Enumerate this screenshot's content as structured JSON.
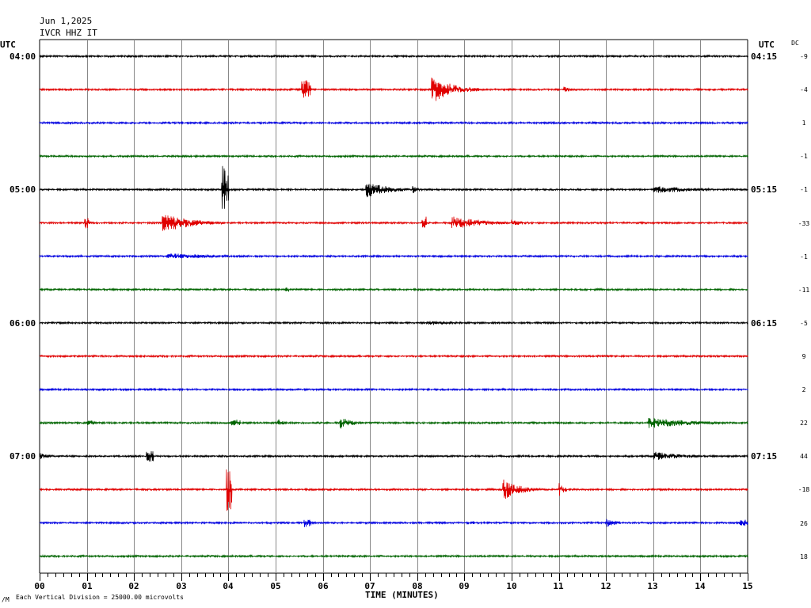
{
  "header": {
    "date": "Jun 1,2025",
    "station": "IVCR HHZ IT"
  },
  "left_axis": {
    "title": "UTC",
    "labels": [
      "04:00",
      "05:00",
      "06:00",
      "07:00"
    ]
  },
  "right_axis": {
    "title": "UTC",
    "labels": [
      "04:15",
      "05:15",
      "06:15",
      "07:15"
    ]
  },
  "dc": {
    "title": "DC",
    "values": [
      "-9",
      "-4",
      "1",
      "-1",
      "-1",
      "-33",
      "-1",
      "-11",
      "-5",
      "9",
      "2",
      "22",
      "44",
      "-18",
      "26",
      "18"
    ]
  },
  "x_axis": {
    "title": "TIME (MINUTES)",
    "ticks": [
      "00",
      "01",
      "02",
      "03",
      "04",
      "05",
      "06",
      "07",
      "08",
      "09",
      "10",
      "11",
      "12",
      "13",
      "14",
      "15"
    ]
  },
  "footer": {
    "mark": "/M",
    "note": "Each Vertical Division = 25000.00 microvolts"
  },
  "colors": {
    "trace_cycle": [
      "#000000",
      "#e00000",
      "#0000e0",
      "#006400"
    ],
    "grid": "#888888"
  },
  "chart_data": {
    "type": "line",
    "x_range_minutes": [
      0,
      15
    ],
    "trace_count": 16,
    "grid": true,
    "bursts": [
      {
        "trace": 0,
        "t": 4.4,
        "dur": 0.3,
        "amp": 2
      },
      {
        "trace": 1,
        "t": 5.55,
        "dur": 0.2,
        "amp": 12
      },
      {
        "trace": 1,
        "t": 8.3,
        "dur": 1.0,
        "amp": 18
      },
      {
        "trace": 1,
        "t": 11.1,
        "dur": 0.4,
        "amp": 4
      },
      {
        "trace": 2,
        "t": 11.7,
        "dur": 0.1,
        "amp": 2
      },
      {
        "trace": 4,
        "t": 3.85,
        "dur": 0.15,
        "amp": 30
      },
      {
        "trace": 4,
        "t": 6.9,
        "dur": 1.0,
        "amp": 11
      },
      {
        "trace": 4,
        "t": 7.9,
        "dur": 0.3,
        "amp": 5
      },
      {
        "trace": 4,
        "t": 13.0,
        "dur": 2.0,
        "amp": 5
      },
      {
        "trace": 5,
        "t": 0.95,
        "dur": 0.1,
        "amp": 8
      },
      {
        "trace": 5,
        "t": 2.6,
        "dur": 1.3,
        "amp": 13
      },
      {
        "trace": 5,
        "t": 8.1,
        "dur": 0.1,
        "amp": 8
      },
      {
        "trace": 5,
        "t": 8.7,
        "dur": 1.4,
        "amp": 10
      },
      {
        "trace": 5,
        "t": 10.0,
        "dur": 0.8,
        "amp": 4
      },
      {
        "trace": 6,
        "t": 2.7,
        "dur": 2.7,
        "amp": 4
      },
      {
        "trace": 7,
        "t": 5.2,
        "dur": 0.1,
        "amp": 3
      },
      {
        "trace": 8,
        "t": 8.2,
        "dur": 2.2,
        "amp": 3
      },
      {
        "trace": 11,
        "t": 1.0,
        "dur": 0.2,
        "amp": 3
      },
      {
        "trace": 11,
        "t": 4.05,
        "dur": 0.2,
        "amp": 4
      },
      {
        "trace": 11,
        "t": 5.05,
        "dur": 0.3,
        "amp": 5
      },
      {
        "trace": 11,
        "t": 6.35,
        "dur": 0.6,
        "amp": 9
      },
      {
        "trace": 11,
        "t": 12.9,
        "dur": 2.1,
        "amp": 7
      },
      {
        "trace": 12,
        "t": 0.0,
        "dur": 0.6,
        "amp": 4
      },
      {
        "trace": 12,
        "t": 2.25,
        "dur": 0.15,
        "amp": 7
      },
      {
        "trace": 12,
        "t": 13.0,
        "dur": 1.4,
        "amp": 6
      },
      {
        "trace": 13,
        "t": 3.95,
        "dur": 0.12,
        "amp": 28
      },
      {
        "trace": 13,
        "t": 9.8,
        "dur": 0.8,
        "amp": 14
      },
      {
        "trace": 13,
        "t": 11.0,
        "dur": 0.25,
        "amp": 10
      },
      {
        "trace": 14,
        "t": 5.6,
        "dur": 0.15,
        "amp": 6
      },
      {
        "trace": 14,
        "t": 9.0,
        "dur": 0.2,
        "amp": 2
      },
      {
        "trace": 14,
        "t": 12.0,
        "dur": 0.5,
        "amp": 6
      },
      {
        "trace": 14,
        "t": 14.8,
        "dur": 0.2,
        "amp": 4
      }
    ]
  }
}
